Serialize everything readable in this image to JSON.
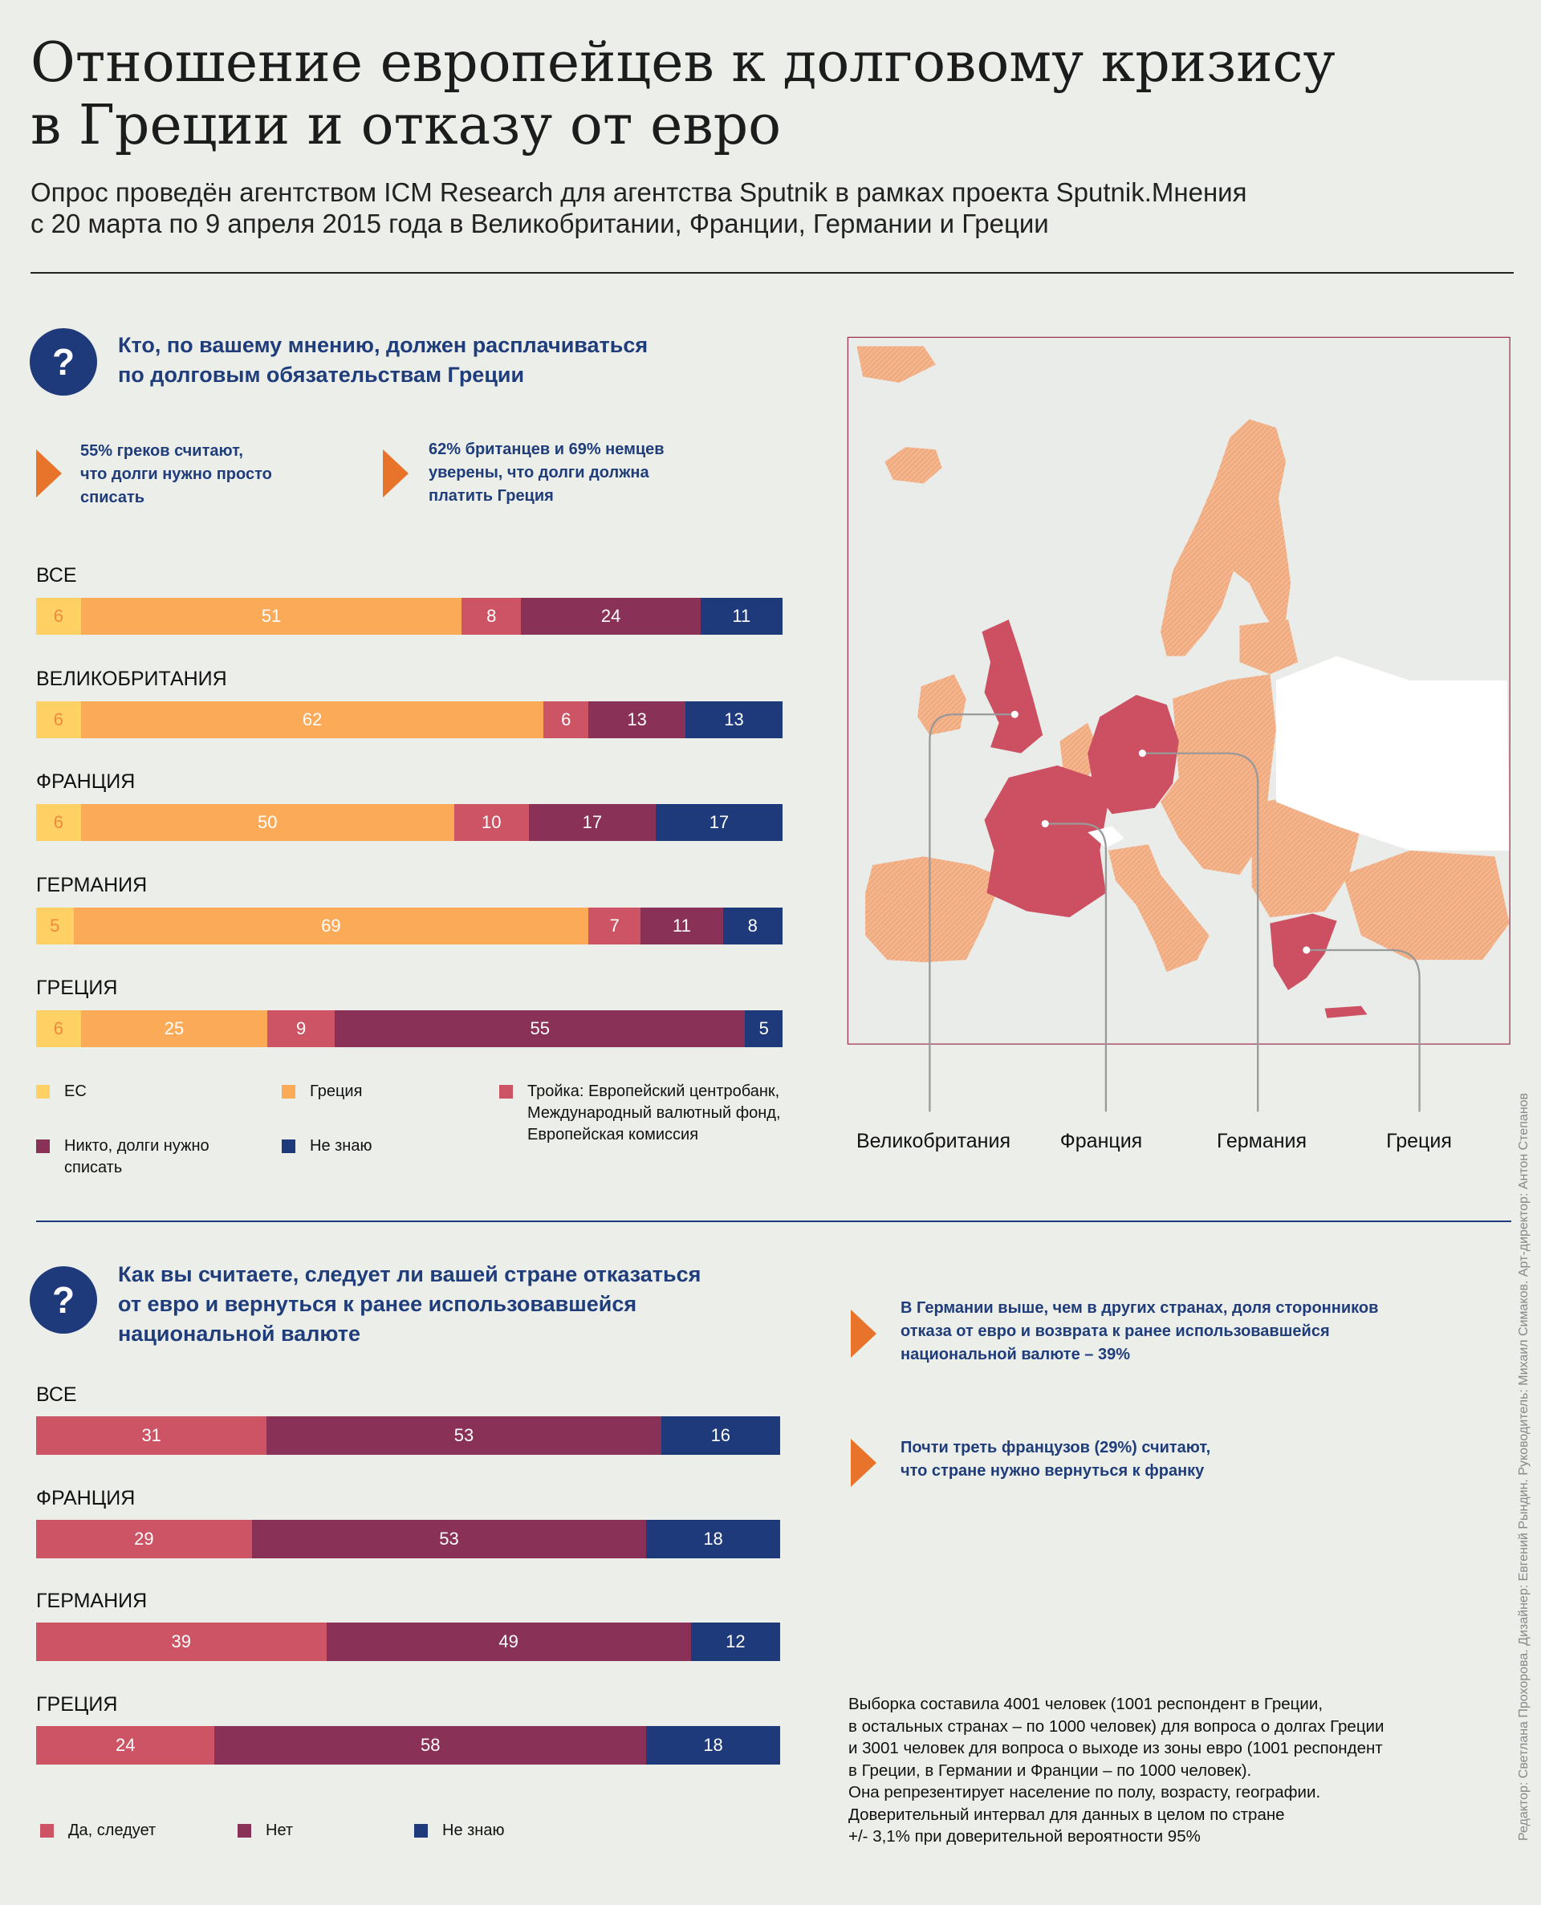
{
  "header": {
    "title_line1": "Отношение европейцев к долговому кризису",
    "title_line2": "в Греции и отказу от евро",
    "subtitle_line1": "Опрос проведён агентством ICM Research для агентства Sputnik в рамках проекта Sputnik.Мнения",
    "subtitle_line2": "с 20 марта по 9 апреля 2015 года в Великобритании, Франции, Германии и Греции"
  },
  "question1": {
    "icon": "question-mark-icon",
    "icon_glyph": "?",
    "text_line1": "Кто, по вашему мнению,  должен расплачиваться",
    "text_line2": "по долговым обязательствам Греции",
    "callouts": [
      {
        "lines": [
          "55% греков считают,",
          "что долги нужно просто",
          "списать"
        ]
      },
      {
        "lines": [
          "62% британцев и 69% немцев",
          "уверены, что долги должна",
          "платить Греция"
        ]
      }
    ]
  },
  "question2": {
    "icon": "question-mark-icon",
    "icon_glyph": "?",
    "text_line1": "Как вы считаете, следует ли вашей стране отказаться",
    "text_line2": "от евро и вернуться к ранее использовавшейся",
    "text_line3": "национальной валюте",
    "callouts": [
      {
        "lines": [
          "В Германии выше, чем в других странах, доля сторонников",
          "отказа от евро и возврата к ранее использовавшейся",
          "национальной валюте – 39%"
        ]
      },
      {
        "lines": [
          "Почти треть французов (29%) считают,",
          "что стране нужно вернуться к франку"
        ]
      }
    ]
  },
  "chart_data": [
    {
      "type": "bar",
      "orientation": "horizontal-stacked-100",
      "categories": [
        "ВСЕ",
        "ВЕЛИКОБРИТАНИЯ",
        "ФРАНЦИЯ",
        "ГЕРМАНИЯ",
        "ГРЕЦИЯ"
      ],
      "series": [
        {
          "name": "ЕС",
          "color": "#ffd064",
          "values": [
            6,
            6,
            6,
            5,
            6
          ]
        },
        {
          "name": "Греция",
          "color": "#fbaa58",
          "values": [
            51,
            62,
            50,
            69,
            25
          ]
        },
        {
          "name": "Тройка: Европейский центробанк, Международный валютный фонд, Европейская комиссия",
          "color": "#cc5464",
          "values": [
            8,
            6,
            10,
            7,
            9
          ]
        },
        {
          "name": "Никто, долги нужно списать",
          "color": "#8a3158",
          "values": [
            24,
            13,
            17,
            11,
            55
          ]
        },
        {
          "name": "Не знаю",
          "color": "#1f3a7a",
          "values": [
            11,
            13,
            17,
            8,
            5
          ]
        }
      ],
      "legend": [
        {
          "lines": [
            "ЕС"
          ],
          "color": "#ffd064"
        },
        {
          "lines": [
            "Греция"
          ],
          "color": "#fbaa58"
        },
        {
          "lines": [
            "Тройка: Европейский центробанк,",
            "Международный валютный фонд,",
            "Европейская комиссия"
          ],
          "color": "#cc5464"
        },
        {
          "lines": [
            "Никто, долги нужно",
            "списать"
          ],
          "color": "#8a3158"
        },
        {
          "lines": [
            "Не знаю"
          ],
          "color": "#1f3a7a"
        }
      ],
      "legend_placement": "bottom",
      "xlim": [
        0,
        100
      ],
      "data_labels": true
    },
    {
      "type": "bar",
      "orientation": "horizontal-stacked-100",
      "categories": [
        "ВСЕ",
        "ФРАНЦИЯ",
        "ГЕРМАНИЯ",
        "ГРЕЦИЯ"
      ],
      "series": [
        {
          "name": "Да, следует",
          "color": "#cc5464",
          "values": [
            31,
            29,
            39,
            24
          ]
        },
        {
          "name": "Нет",
          "color": "#8a3158",
          "values": [
            53,
            53,
            49,
            58
          ]
        },
        {
          "name": "Не знаю",
          "color": "#1f3a7a",
          "values": [
            16,
            18,
            12,
            18
          ]
        }
      ],
      "legend": [
        {
          "lines": [
            "Да, следует"
          ],
          "color": "#cc5464"
        },
        {
          "lines": [
            "Нет"
          ],
          "color": "#8a3158"
        },
        {
          "lines": [
            "Не знаю"
          ],
          "color": "#1f3a7a"
        }
      ],
      "legend_placement": "bottom",
      "xlim": [
        0,
        100
      ],
      "data_labels": true
    }
  ],
  "map": {
    "highlight_color": "#cc4f62",
    "base_color": "#f0a77c",
    "border_color": "#9c2c4c",
    "countries": [
      "Великобритания",
      "Франция",
      "Германия",
      "Греция"
    ]
  },
  "footnote": {
    "lines": [
      "Выборка составила 4001 человек (1001 респондент в Греции,",
      "в остальных странах – по 1000 человек) для вопроса о долгах Греции",
      "и 3001 человек для вопроса о выходе из зоны евро (1001 респондент",
      "в Греции, в Германии и Франции – по 1000 человек).",
      "Она репрезентирует население по полу, возрасту, географии.",
      "Доверительный интервал для данных в целом по стране",
      "+/- 3,1% при доверительной вероятности 95%"
    ]
  },
  "credits": "Редактор: Светлана Прохорова. Дизайнер: Евгений Рындин. Руководитель: Михаил Симаков. Арт-директор: Антон Степанов"
}
